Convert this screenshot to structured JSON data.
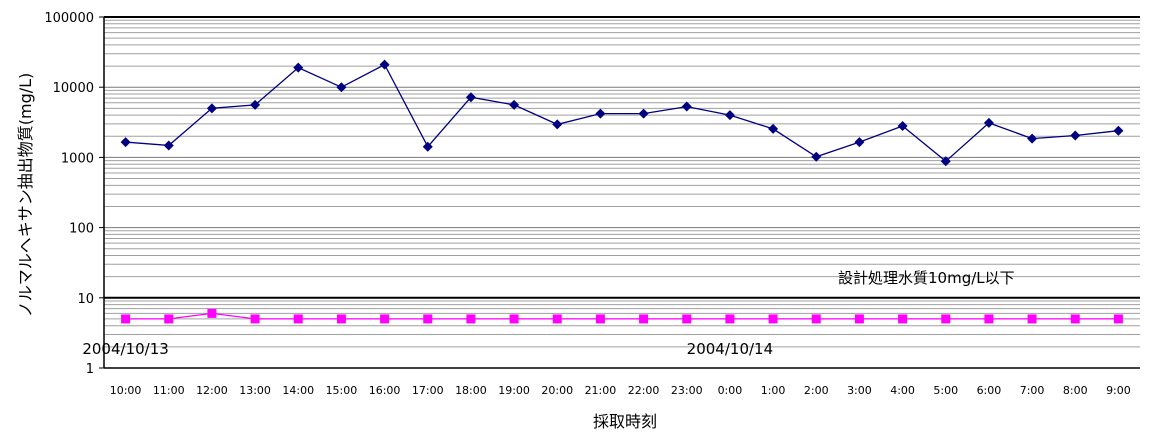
{
  "chart_data": {
    "type": "line",
    "title": "",
    "xlabel": "採取時刻",
    "ylabel": "ノルマルヘキサン抽出物質(mg/L)",
    "yscale": "log",
    "ylim": [
      1,
      100000
    ],
    "y_ticks": [
      "1",
      "10",
      "100",
      "1000",
      "10000",
      "100000"
    ],
    "grid": "horizontal minor log gridlines",
    "categories": [
      "10:00",
      "11:00",
      "12:00",
      "13:00",
      "14:00",
      "15:00",
      "16:00",
      "17:00",
      "18:00",
      "19:00",
      "20:00",
      "21:00",
      "22:00",
      "23:00",
      "0:00",
      "1:00",
      "2:00",
      "3:00",
      "4:00",
      "5:00",
      "6:00",
      "7:00",
      "8:00",
      "9:00"
    ],
    "series": [
      {
        "color": "#000080",
        "marker": "diamond",
        "values": [
          1650,
          1480,
          5000,
          5600,
          19000,
          10000,
          21000,
          1420,
          7200,
          5600,
          2950,
          4200,
          4200,
          5300,
          4000,
          2550,
          1020,
          1650,
          2800,
          880,
          3100,
          1850,
          2050,
          2400
        ]
      },
      {
        "color": "#ff00ff",
        "marker": "square",
        "values": [
          5,
          5,
          6,
          5,
          5,
          5,
          5,
          5,
          5,
          5,
          5,
          5,
          5,
          5,
          5,
          5,
          5,
          5,
          5,
          5,
          5,
          5,
          5,
          5
        ]
      }
    ],
    "reference_line": {
      "value": 10,
      "label": "設計処理水質10mg/L以下"
    },
    "date_labels": [
      {
        "text": "2004/10/13",
        "category": "10:00"
      },
      {
        "text": "2004/10/14",
        "category": "0:00"
      }
    ]
  }
}
